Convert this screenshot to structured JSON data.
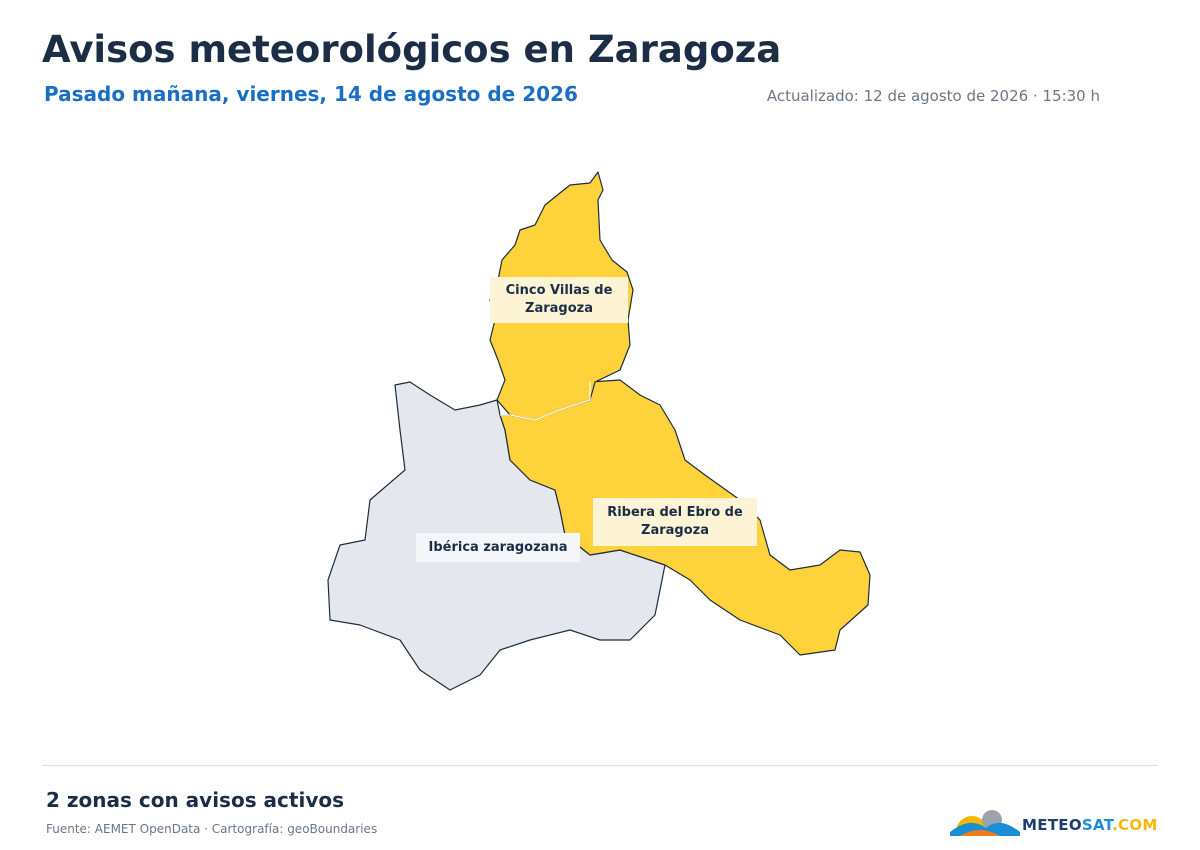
{
  "header": {
    "title": "Avisos meteorológicos en Zaragoza",
    "subtitle": "Pasado mañana, viernes, 14 de agosto de 2026",
    "updated": "Actualizado: 12 de agosto de 2026 · 15:30 h"
  },
  "zones": [
    {
      "label": "Cinco Villas de Zaragoza",
      "color": "#fdd23a"
    },
    {
      "label": "Ribera del Ebro de Zaragoza",
      "color": "#fdd23a"
    },
    {
      "label": "Ibérica zaragozana",
      "color": "#e4e8ee"
    }
  ],
  "footer": {
    "summary": "2 zonas con avisos activos",
    "source": "Fuente: AEMET OpenData · Cartografía: geoBoundaries",
    "logo": [
      {
        "text": "METEO",
        "color": "#1c3d6e"
      },
      {
        "text": "SAT",
        "color": "#1a8fd6"
      },
      {
        "text": ".COM",
        "color": "#f5b800"
      }
    ]
  }
}
